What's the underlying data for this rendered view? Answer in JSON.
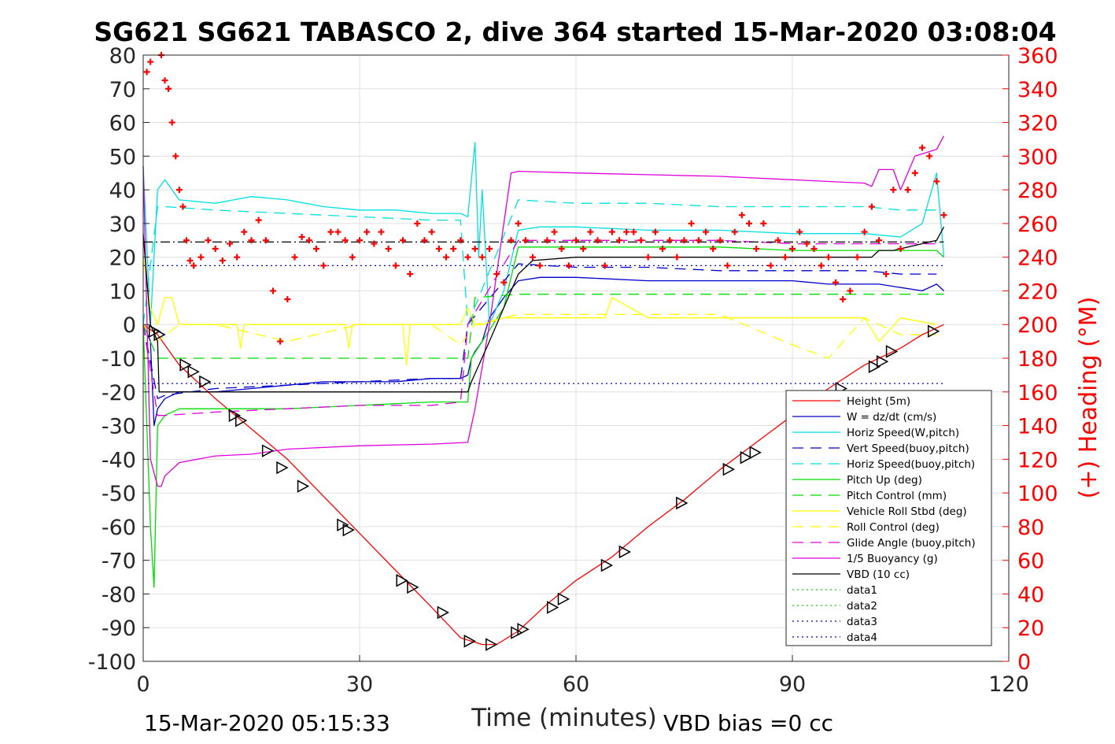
{
  "chart_data": {
    "type": "line",
    "title": "SG621 SG621 TABASCO 2, dive 364 started 15-Mar-2020 03:08:04",
    "xlabel": "Time (minutes)",
    "ylabel_right": "(+) Heading (°M)",
    "xlim": [
      0,
      120
    ],
    "ylim_left": [
      -100,
      80
    ],
    "ylim_right": [
      0,
      360
    ],
    "x_ticks": [
      "0",
      "30",
      "60",
      "90",
      "120"
    ],
    "y_ticks_left": [
      "80",
      "70",
      "60",
      "50",
      "40",
      "30",
      "20",
      "10",
      "0",
      "-10",
      "-20",
      "-30",
      "-40",
      "-50",
      "-60",
      "-70",
      "-80",
      "-90",
      "-100"
    ],
    "y_ticks_right": [
      "360",
      "340",
      "320",
      "300",
      "280",
      "260",
      "240",
      "220",
      "200",
      "180",
      "160",
      "140",
      "120",
      "100",
      "80",
      "60",
      "40",
      "20",
      "0"
    ],
    "grid": true,
    "legend_position": "bottom-right",
    "footer_left": "15-Mar-2020 05:15:33",
    "footer_right": "VBD bias =0 cc",
    "colors": {
      "heading": "#ff0000",
      "right_axis": "#ff0000",
      "grid": "#e0e0e0"
    },
    "series": [
      {
        "name": "Height (5m)",
        "color": "#ff0000",
        "style": "solid",
        "axis": "left",
        "x": [
          0,
          2,
          5,
          10,
          15,
          20,
          25,
          30,
          35,
          40,
          44,
          47,
          49,
          52,
          56,
          60,
          65,
          70,
          75,
          80,
          85,
          90,
          95,
          100,
          105,
          108,
          111
        ],
        "y": [
          0,
          -3,
          -12,
          -22,
          -31,
          -40,
          -51,
          -62,
          -73,
          -84,
          -93,
          -95,
          -95,
          -91,
          -83,
          -76,
          -69,
          -60,
          -52,
          -43,
          -35,
          -27,
          -19,
          -12,
          -7,
          -3,
          0
        ]
      },
      {
        "name": "W = dz/dt (cm/s)",
        "color": "#0000cc",
        "style": "solid",
        "axis": "left",
        "x": [
          0,
          1,
          1.5,
          2,
          3,
          5,
          10,
          15,
          20,
          25,
          30,
          35,
          40,
          44,
          45,
          45.5,
          46,
          47,
          48,
          50,
          52,
          55,
          60,
          70,
          80,
          90,
          95,
          100,
          102,
          105,
          108,
          110,
          111
        ],
        "y": [
          0,
          -5,
          -30,
          -25,
          -22,
          -20,
          -20,
          -19,
          -18,
          -17,
          -17,
          -17,
          -16,
          -16,
          -15,
          -10,
          -8,
          -5,
          2,
          8,
          13,
          14,
          14,
          13,
          13,
          13,
          12,
          12,
          12,
          11,
          10,
          12,
          10
        ]
      },
      {
        "name": "Horiz Speed(W,pitch)",
        "color": "#00e0e0",
        "style": "solid",
        "axis": "left",
        "x": [
          0,
          1,
          2,
          3,
          4,
          5,
          10,
          15,
          20,
          25,
          30,
          35,
          40,
          44,
          45,
          46,
          46.5,
          47,
          48,
          50,
          52,
          55,
          60,
          70,
          80,
          90,
          100,
          105,
          108,
          110,
          111
        ],
        "y": [
          47,
          0,
          40,
          43,
          40,
          37,
          36,
          38,
          37,
          35,
          34,
          34,
          33,
          33,
          32,
          54,
          20,
          40,
          0,
          10,
          28,
          29,
          29,
          28,
          28,
          27,
          27,
          26,
          30,
          45,
          20
        ]
      },
      {
        "name": "Vert Speed(buoy,pitch)",
        "color": "#0000cc",
        "style": "dashed",
        "axis": "left",
        "x": [
          0,
          2,
          3,
          10,
          20,
          30,
          40,
          44,
          45,
          52,
          60,
          70,
          80,
          90,
          100,
          105,
          110
        ],
        "y": [
          0,
          -22,
          -21,
          -19,
          -18,
          -17,
          -16,
          -16,
          0,
          18,
          17,
          17,
          16,
          16,
          16,
          15,
          15
        ]
      },
      {
        "name": "Horiz Speed(buoy,pitch)",
        "color": "#00e0e0",
        "style": "dashed",
        "axis": "left",
        "x": [
          0,
          2,
          3,
          10,
          20,
          30,
          40,
          44,
          45,
          52,
          60,
          70,
          80,
          90,
          100,
          105,
          110
        ],
        "y": [
          0,
          35,
          35,
          34,
          33,
          32,
          31,
          31,
          0,
          37,
          36,
          36,
          35,
          35,
          35,
          34,
          34
        ]
      },
      {
        "name": "Pitch Up (deg)",
        "color": "#00dd00",
        "style": "solid",
        "axis": "left",
        "x": [
          0,
          1,
          1.5,
          2,
          3,
          5,
          10,
          20,
          30,
          40,
          45,
          45.5,
          47,
          50,
          52,
          60,
          70,
          80,
          90,
          100,
          105,
          110,
          111
        ],
        "y": [
          0,
          -60,
          -78,
          -30,
          -27,
          -25,
          -25,
          -25,
          -24,
          -23,
          -23,
          -10,
          -5,
          5,
          23,
          23,
          23,
          23,
          22,
          22,
          22,
          22,
          20
        ]
      },
      {
        "name": "Pitch Control (mm)",
        "color": "#00dd00",
        "style": "dashed",
        "axis": "left",
        "x": [
          0,
          2,
          3,
          45,
          46,
          52,
          110,
          111
        ],
        "y": [
          0,
          -10,
          -10,
          -10,
          8,
          9,
          9,
          9
        ]
      },
      {
        "name": "Vehicle Roll Stbd (deg)",
        "color": "#ffff00",
        "style": "solid",
        "axis": "left",
        "x": [
          0,
          1,
          2,
          3,
          4,
          5,
          6,
          7,
          10,
          13,
          13.5,
          14,
          20,
          28,
          28.5,
          29,
          36,
          36.5,
          37,
          44,
          45,
          46,
          47,
          50,
          52,
          55,
          60,
          64,
          65,
          70,
          75,
          80,
          85,
          90,
          95,
          100,
          102,
          105,
          110
        ],
        "y": [
          20,
          5,
          0,
          8,
          8,
          0,
          0,
          0,
          0,
          0,
          -7,
          0,
          0,
          0,
          -7,
          0,
          0,
          -12,
          0,
          0,
          5,
          0,
          0,
          2,
          2,
          2,
          2,
          2,
          8,
          2,
          2,
          2,
          2,
          2,
          2,
          2,
          -5,
          2,
          0
        ]
      },
      {
        "name": "Roll Control (deg)",
        "color": "#ffff00",
        "style": "dashed",
        "axis": "left",
        "x": [
          0,
          2,
          5,
          10,
          20,
          30,
          40,
          44,
          46,
          52,
          60,
          70,
          80,
          90,
          95,
          100,
          105,
          110
        ],
        "y": [
          0,
          -5,
          0,
          0,
          -5,
          0,
          0,
          -6,
          0,
          3,
          3,
          3,
          3,
          -6,
          -10,
          2,
          -3,
          -3
        ]
      },
      {
        "name": "Glide Angle (buoy,pitch)",
        "color": "#dd00dd",
        "style": "dashed",
        "axis": "left",
        "x": [
          0,
          2,
          3,
          10,
          20,
          30,
          40,
          44,
          45,
          52,
          60,
          70,
          80,
          90,
          100,
          105,
          110
        ],
        "y": [
          0,
          -27,
          -27,
          -26,
          -25,
          -24,
          -24,
          -23,
          0,
          25,
          25,
          25,
          25,
          24,
          24,
          24,
          24
        ]
      },
      {
        "name": "1/5 Buoyancy (g)",
        "color": "#dd00dd",
        "style": "solid",
        "axis": "left",
        "x": [
          0,
          1,
          2,
          2.5,
          3,
          5,
          10,
          15,
          20,
          30,
          40,
          45,
          46,
          48,
          50,
          51,
          52,
          60,
          70,
          80,
          90,
          100,
          101,
          102,
          104,
          105,
          107,
          110,
          111
        ],
        "y": [
          47,
          -40,
          -48,
          -48,
          -45,
          -41,
          -39,
          -38.5,
          -37,
          -36,
          -35.5,
          -35,
          -25,
          0,
          30,
          45,
          45.5,
          45,
          44.5,
          44,
          43,
          42,
          41,
          46,
          46,
          40,
          50,
          52,
          56
        ]
      },
      {
        "name": "VBD (10 cc)",
        "color": "#000000",
        "style": "solid",
        "axis": "left",
        "x": [
          0,
          1,
          2,
          2.2,
          10,
          20,
          30,
          40,
          45,
          45.5,
          48,
          50,
          52,
          54,
          60,
          70,
          80,
          90,
          95,
          101,
          102,
          104,
          110,
          111
        ],
        "y": [
          27,
          0,
          -5,
          -20,
          -20,
          -20,
          -20,
          -20,
          -20,
          -17,
          -5,
          5,
          15,
          19,
          20,
          20,
          20,
          20,
          20,
          20,
          22,
          22,
          25,
          29
        ]
      },
      {
        "name": "data1",
        "color": "#00dd00",
        "style": "dotted",
        "axis": "left",
        "x": [],
        "y": []
      },
      {
        "name": "data2",
        "color": "#00dd00",
        "style": "dotted",
        "axis": "left",
        "x": [],
        "y": []
      },
      {
        "name": "data3",
        "color": "#0000cc",
        "style": "dotted",
        "axis": "left",
        "x": [
          0,
          111
        ],
        "y": [
          17.5,
          17.5
        ]
      },
      {
        "name": "data4",
        "color": "#0000cc",
        "style": "dotted",
        "axis": "left",
        "x": [
          0,
          111
        ],
        "y": [
          -17.5,
          -17.5
        ]
      },
      {
        "name": "",
        "color": "#000000",
        "style": "dashdot",
        "axis": "left",
        "x": [
          0,
          111
        ],
        "y": [
          24.5,
          24.5
        ]
      }
    ],
    "heading_series": {
      "color": "#ff0000",
      "axis": "right",
      "marker": "+",
      "x": [
        0.5,
        1,
        2.5,
        3,
        3.5,
        4,
        4.5,
        5,
        5.5,
        6,
        6.5,
        7,
        8,
        9,
        10,
        11,
        12,
        13,
        14,
        15,
        16,
        17,
        18,
        19,
        20,
        21,
        22,
        23,
        24,
        25,
        26,
        27,
        28,
        29,
        30,
        31,
        32,
        33,
        34,
        35,
        36,
        37,
        38,
        39,
        40,
        41,
        42,
        43,
        44,
        45,
        46,
        47,
        48,
        49,
        50,
        51,
        52,
        53,
        54,
        55,
        56,
        57,
        58,
        59,
        60,
        61,
        62,
        63,
        64,
        65,
        66,
        67,
        68,
        69,
        70,
        71,
        72,
        73,
        74,
        75,
        76,
        77,
        78,
        79,
        80,
        81,
        82,
        83,
        84,
        85,
        86,
        87,
        88,
        89,
        90,
        91,
        92,
        93,
        94,
        95,
        96,
        97,
        98,
        99,
        100,
        101,
        102,
        103,
        104,
        105,
        106,
        107,
        108,
        109,
        110,
        111
      ],
      "y": [
        350,
        356,
        360,
        345,
        340,
        320,
        300,
        280,
        270,
        250,
        238,
        235,
        240,
        250,
        245,
        238,
        248,
        240,
        255,
        250,
        262,
        250,
        220,
        190,
        215,
        240,
        252,
        250,
        245,
        235,
        255,
        255,
        250,
        240,
        250,
        255,
        248,
        255,
        245,
        235,
        250,
        230,
        260,
        250,
        255,
        245,
        240,
        245,
        250,
        240,
        245,
        240,
        245,
        230,
        225,
        250,
        260,
        250,
        240,
        235,
        250,
        255,
        245,
        235,
        250,
        245,
        255,
        250,
        235,
        255,
        250,
        255,
        255,
        250,
        240,
        255,
        245,
        250,
        240,
        250,
        260,
        250,
        255,
        245,
        250,
        235,
        255,
        265,
        260,
        245,
        260,
        235,
        250,
        240,
        245,
        255,
        248,
        245,
        235,
        240,
        225,
        215,
        220,
        240,
        255,
        270,
        250,
        230,
        280,
        245,
        280,
        290,
        305,
        300,
        285,
        265
      ]
    },
    "triangle_markers": {
      "color": "#000000",
      "x": [
        1.5,
        2.2,
        5.8,
        6.9,
        8.5,
        12.6,
        13.5,
        17.2,
        19.2,
        22.1,
        27.6,
        28.4,
        35.8,
        37.3,
        41.5,
        45.2,
        48.2,
        51.7,
        52.6,
        56.7,
        58.2,
        64.2,
        66.7,
        74.6,
        81.1,
        83.5,
        84.8,
        96.7,
        101.3,
        102.4,
        103.7,
        109.5
      ],
      "y": [
        -2,
        -3,
        -12,
        -14,
        -17,
        -27,
        -28.5,
        -37.5,
        -42.5,
        -48,
        -59.5,
        -61,
        -76,
        -78,
        -85.5,
        -94,
        -95,
        -91.5,
        -90.5,
        -84,
        -81.5,
        -71.5,
        -67.5,
        -53,
        -43,
        -39.5,
        -38,
        -19,
        -12.5,
        -11,
        -8,
        -2
      ]
    }
  }
}
